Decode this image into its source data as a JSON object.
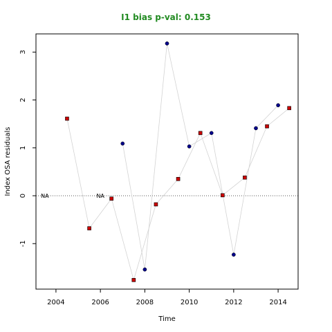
{
  "chart_data": {
    "type": "scatter",
    "title": "I1 bias p-val: 0.153",
    "title_color": "#228B22",
    "xlabel": "Time",
    "ylabel": "Index OSA residuals",
    "xlim": [
      2003.1,
      2014.9
    ],
    "ylim": [
      -1.95,
      3.38
    ],
    "x_ticks": [
      2004,
      2006,
      2008,
      2010,
      2012,
      2014
    ],
    "y_ticks": [
      -1,
      0,
      1,
      2,
      3
    ],
    "reference_line": 0,
    "na_labels": [
      {
        "x": 2003.5,
        "text": "NA"
      },
      {
        "x": 2006.0,
        "text": "NA"
      }
    ],
    "series": [
      {
        "color": "#cc0000",
        "marker": "square",
        "x": [
          2004.5,
          2005.5,
          2006.5,
          2007.5,
          2008.5,
          2009.5,
          2010.5,
          2011.5,
          2012.5,
          2013.5,
          2014.5
        ],
        "values": [
          1.61,
          -0.68,
          -0.06,
          -1.76,
          -0.18,
          0.35,
          1.31,
          0.01,
          0.38,
          1.45,
          1.83
        ]
      },
      {
        "color": "#00008b",
        "marker": "circle",
        "x": [
          2007.0,
          2008.0,
          2009.0,
          2010.0,
          2011.0,
          2012.0,
          2013.0,
          2014.0
        ],
        "values": [
          1.09,
          -1.54,
          3.18,
          1.03,
          1.31,
          -1.23,
          1.41,
          1.89
        ]
      }
    ],
    "connector_color": "#d3d3d3",
    "grid": false
  }
}
